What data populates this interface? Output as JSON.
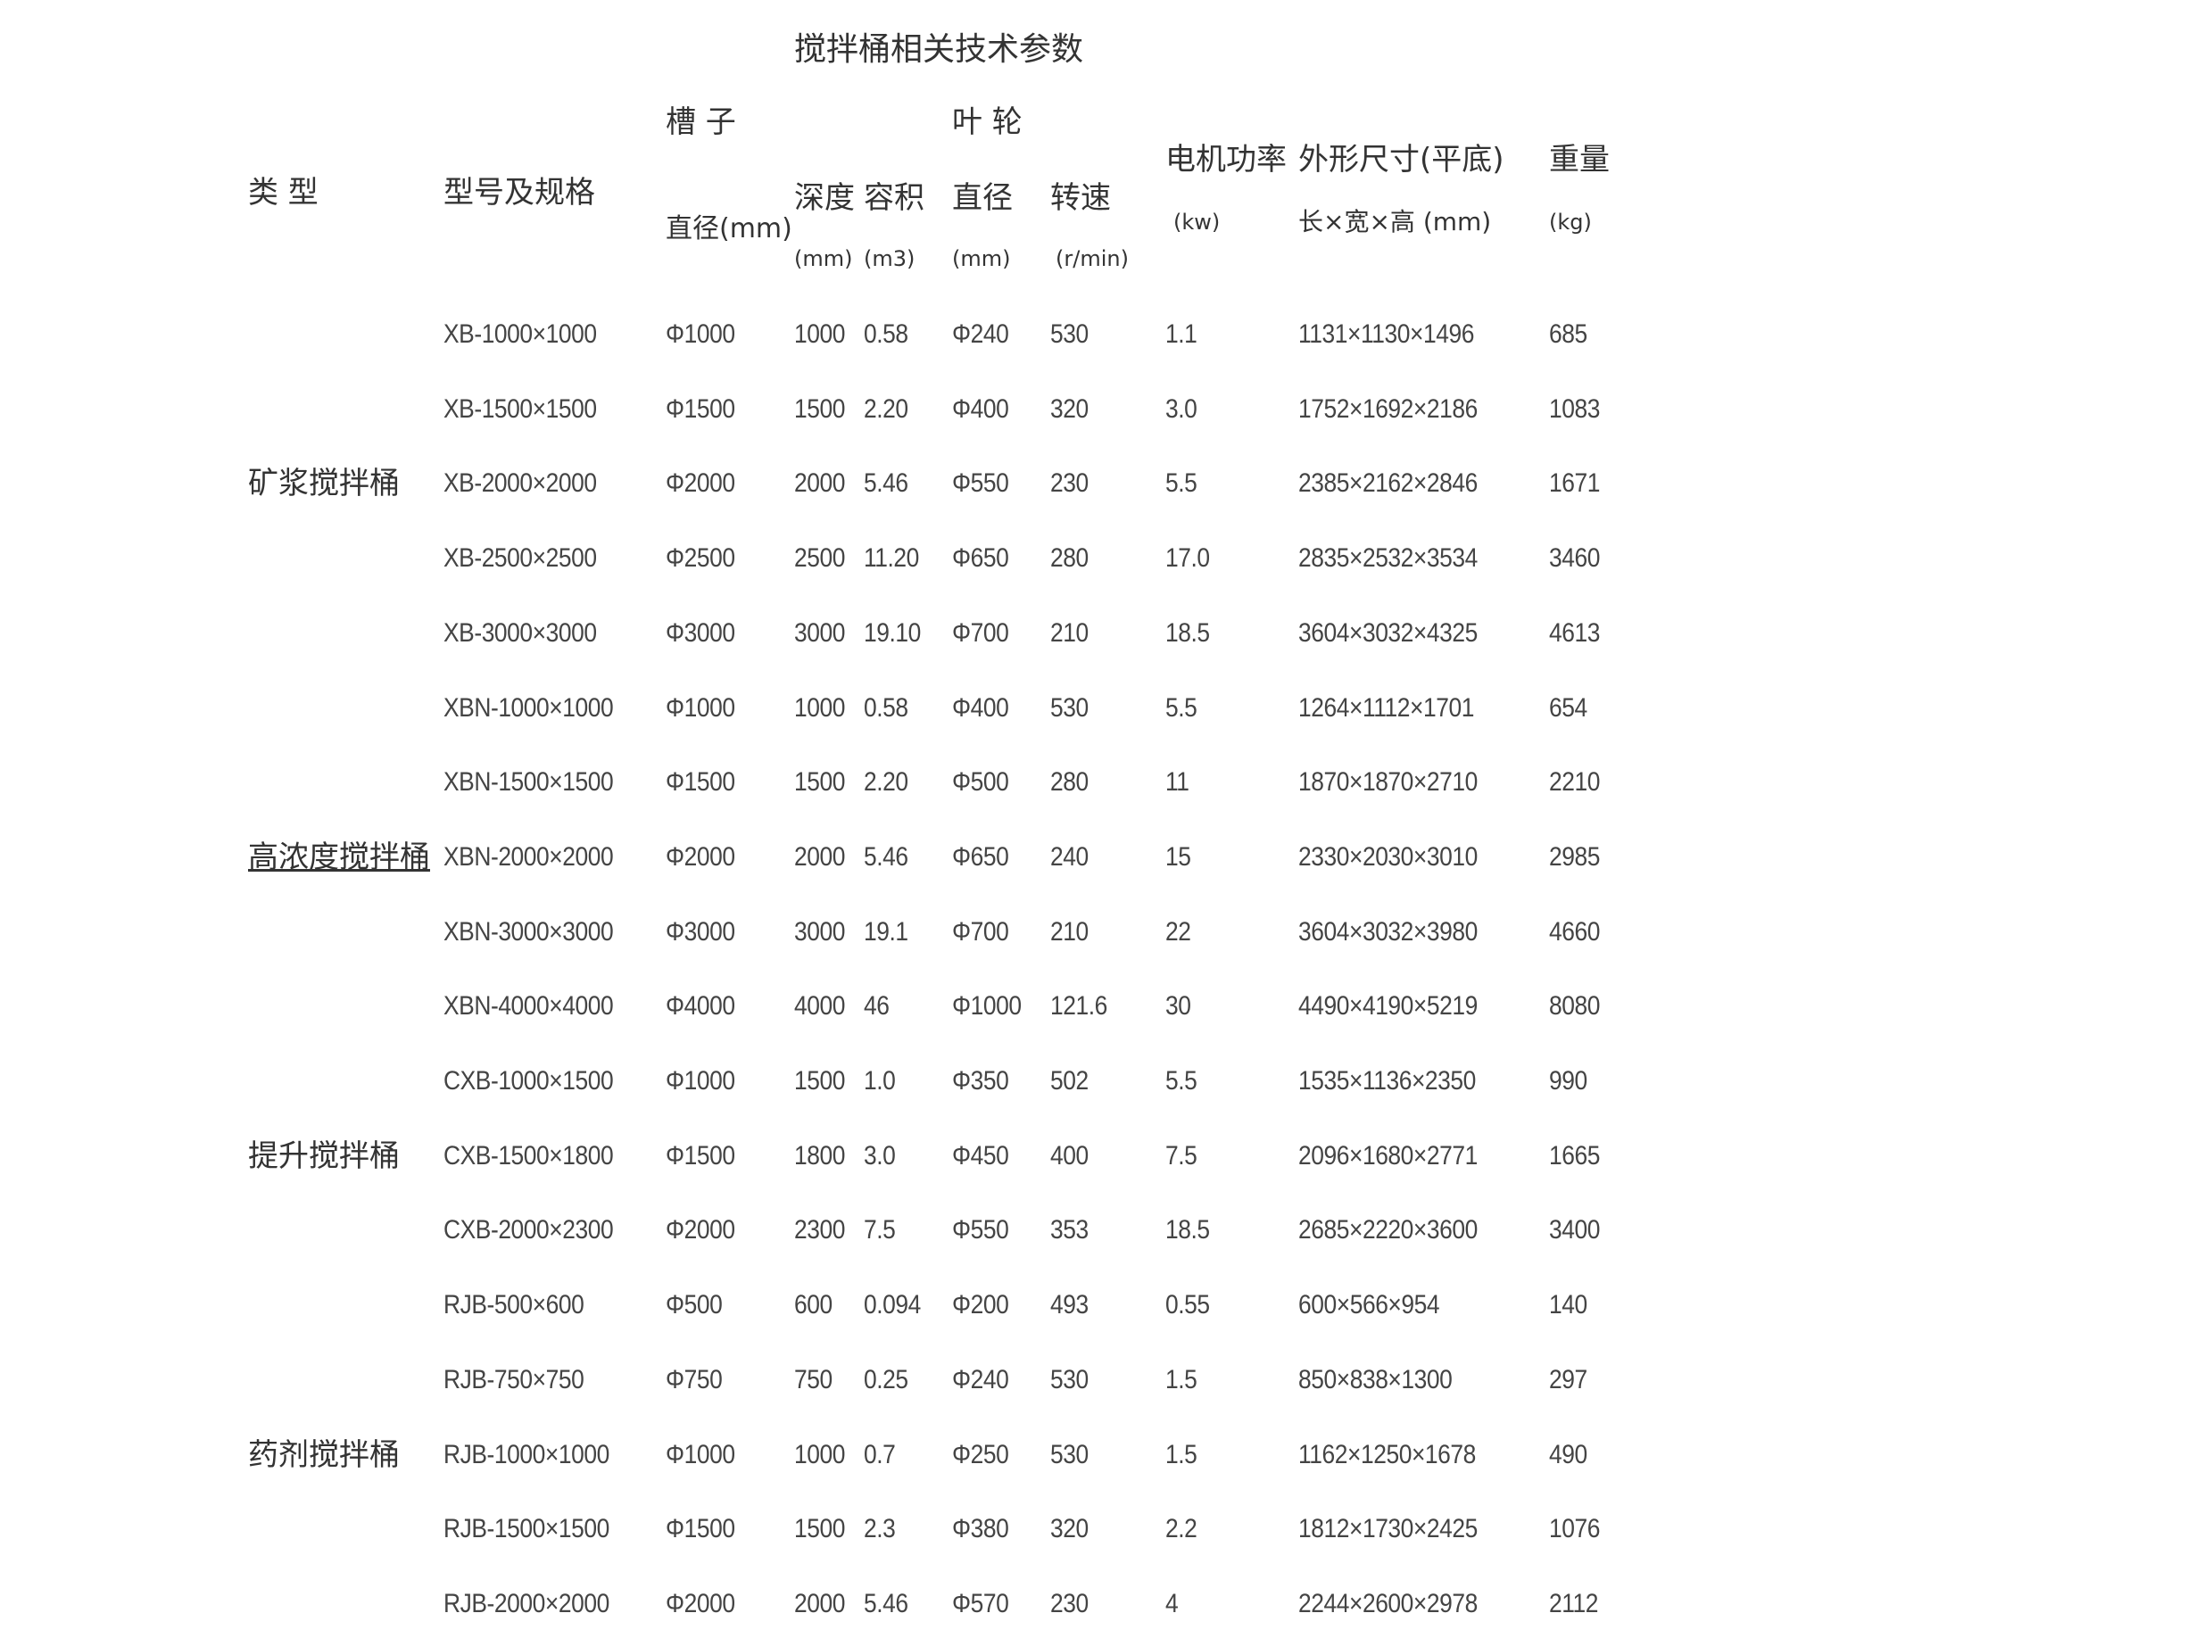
{
  "title": "搅拌桶相关技术参数",
  "headers": {
    "type": "类 型",
    "model": "型号及规格",
    "tank": "槽 子",
    "impeller": "叶 轮",
    "tank_diameter": "直径(mm)",
    "depth": "深度",
    "volume": "容积",
    "impeller_diameter": "直径",
    "speed": "转速",
    "depth_unit": "(mm)",
    "volume_unit": "(m3)",
    "impeller_diameter_unit": "(mm)",
    "speed_unit": "(r/min)",
    "power": "电机功率",
    "power_unit": "(kw)",
    "dimensions": "外形尺寸(平底)",
    "dimensions_unit": "长×宽×高 (mm)",
    "weight": "重量",
    "weight_unit": "(kg)"
  },
  "types": [
    {
      "label": "矿浆搅拌桶",
      "row": 2,
      "underline": false
    },
    {
      "label": "高浓度搅拌桶",
      "row": 7,
      "underline": true
    },
    {
      "label": "提升搅拌桶",
      "row": 11,
      "underline": false
    },
    {
      "label": "药剂搅拌桶",
      "row": 15,
      "underline": false
    }
  ],
  "rows": [
    [
      "XB-1000×1000",
      "Φ1000",
      "1000",
      "0.58",
      "Φ240",
      "530",
      "1.1",
      "1131×1130×1496",
      "685"
    ],
    [
      "XB-1500×1500",
      "Φ1500",
      "1500",
      "2.20",
      "Φ400",
      "320",
      "3.0",
      "1752×1692×2186",
      "1083"
    ],
    [
      "XB-2000×2000",
      "Φ2000",
      "2000",
      "5.46",
      "Φ550",
      "230",
      "5.5",
      "2385×2162×2846",
      "1671"
    ],
    [
      "XB-2500×2500",
      "Φ2500",
      "2500",
      "11.20",
      "Φ650",
      "280",
      "17.0",
      "2835×2532×3534",
      "3460"
    ],
    [
      "XB-3000×3000",
      "Φ3000",
      "3000",
      "19.10",
      "Φ700",
      "210",
      "18.5",
      "3604×3032×4325",
      "4613"
    ],
    [
      "XBN-1000×1000",
      "Φ1000",
      "1000",
      "0.58",
      "Φ400",
      "530",
      "5.5",
      "1264×1112×1701",
      "654"
    ],
    [
      "XBN-1500×1500",
      "Φ1500",
      "1500",
      "2.20",
      "Φ500",
      "280",
      "11",
      "1870×1870×2710",
      "2210"
    ],
    [
      "XBN-2000×2000",
      "Φ2000",
      "2000",
      "5.46",
      "Φ650",
      "240",
      "15",
      "2330×2030×3010",
      "2985"
    ],
    [
      "XBN-3000×3000",
      "Φ3000",
      "3000",
      "19.1",
      "Φ700",
      "210",
      "22",
      "3604×3032×3980",
      "4660"
    ],
    [
      "XBN-4000×4000",
      "Φ4000",
      "4000",
      "46",
      "Φ1000",
      "121.6",
      "30",
      "4490×4190×5219",
      "8080"
    ],
    [
      "CXB-1000×1500",
      "Φ1000",
      "1500",
      "1.0",
      "Φ350",
      "502",
      "5.5",
      "1535×1136×2350",
      "990"
    ],
    [
      "CXB-1500×1800",
      "Φ1500",
      "1800",
      "3.0",
      "Φ450",
      "400",
      "7.5",
      "2096×1680×2771",
      "1665"
    ],
    [
      "CXB-2000×2300",
      "Φ2000",
      "2300",
      "7.5",
      "Φ550",
      "353",
      "18.5",
      "2685×2220×3600",
      "3400"
    ],
    [
      "RJB-500×600",
      "Φ500",
      "600",
      "0.094",
      "Φ200",
      "493",
      "0.55",
      "600×566×954",
      "140"
    ],
    [
      "RJB-750×750",
      "Φ750",
      "750",
      "0.25",
      "Φ240",
      "530",
      "1.5",
      "850×838×1300",
      "297"
    ],
    [
      "RJB-1000×1000",
      "Φ1000",
      "1000",
      "0.7",
      "Φ250",
      "530",
      "1.5",
      "1162×1250×1678",
      "490"
    ],
    [
      "RJB-1500×1500",
      "Φ1500",
      "1500",
      "2.3",
      "Φ380",
      "320",
      "2.2",
      "1812×1730×2425",
      "1076"
    ],
    [
      "RJB-2000×2000",
      "Φ2000",
      "2000",
      "5.46",
      "Φ570",
      "230",
      "4",
      "2244×2600×2978",
      "2112"
    ]
  ]
}
